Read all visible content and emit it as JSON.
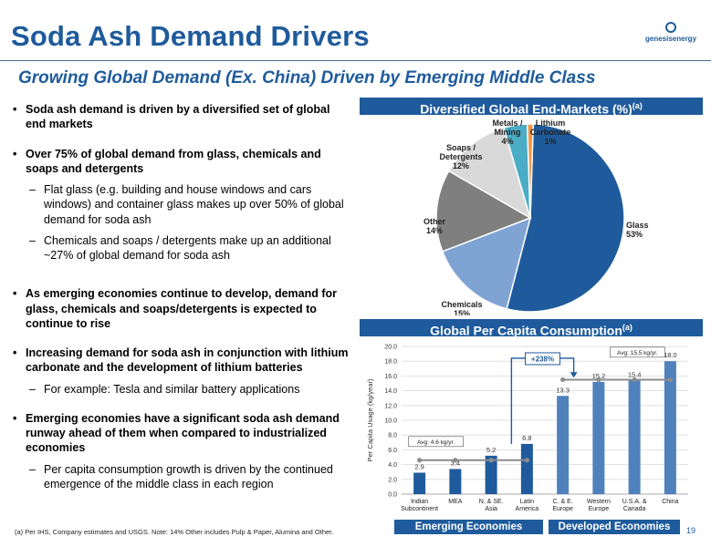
{
  "header": {
    "title": "Soda Ash Demand Drivers",
    "subtitle": "Growing Global Demand (Ex. China) Driven by Emerging Middle Class",
    "logo_text": "genesisenergy"
  },
  "bullets": [
    {
      "text": "Soda ash demand is driven by a diversified set of global end markets",
      "subs": []
    },
    {
      "text": "Over 75% of global demand from glass, chemicals and soaps and detergents",
      "subs": [
        "Flat glass (e.g. building and house windows and cars windows) and container glass makes up over 50% of global demand for soda ash",
        "Chemicals and soaps / detergents make up an additional ~27% of global demand for soda ash"
      ]
    },
    {
      "text": "As emerging economies continue to develop, demand for glass, chemicals and soaps/detergents is expected to continue to rise",
      "subs": []
    },
    {
      "text": "Increasing demand for soda ash in conjunction with lithium carbonate and the development of lithium batteries",
      "subs": [
        "For example: Tesla and similar battery applications"
      ]
    },
    {
      "text": "Emerging economies have a significant soda ash demand runway ahead of them when compared to industrialized economies",
      "subs": [
        "Per capita consumption growth is driven by the continued emergence of the middle class in each region"
      ]
    }
  ],
  "pie_panel": {
    "title": "Diversified Global End-Markets (%)",
    "sup": "(a)"
  },
  "bar_panel": {
    "title": "Global Per Capita Consumption",
    "sup": "(a)"
  },
  "chart_data": [
    {
      "type": "pie",
      "slices": [
        {
          "label": [
            "Glass",
            "53%"
          ],
          "value": 53,
          "color": "#1F5B9C"
        },
        {
          "label": [
            "Chemicals",
            "15%"
          ],
          "value": 15,
          "color": "#7FA3D3"
        },
        {
          "label": [
            "Other",
            "14%"
          ],
          "value": 14,
          "color": "#7F7F7F"
        },
        {
          "label": [
            "Soaps /",
            "Detergents",
            "12%"
          ],
          "value": 12,
          "color": "#D9D9D9"
        },
        {
          "label": [
            "Metals /",
            "Mining",
            "4%"
          ],
          "value": 4,
          "color": "#4BACC6"
        },
        {
          "label": [
            "Lithium",
            "Carbonate",
            "1%"
          ],
          "value": 1,
          "color": "#F79646"
        }
      ]
    },
    {
      "type": "bar",
      "categories": [
        [
          "Indian",
          "Subcontinent"
        ],
        [
          "MEA"
        ],
        [
          "N. & SE.",
          "Asia"
        ],
        [
          "Latin",
          "America"
        ],
        [
          "C. & E.",
          "Europe"
        ],
        [
          "Western",
          "Europe"
        ],
        [
          "U.S.A. &",
          "Canada"
        ],
        [
          "China"
        ]
      ],
      "values": [
        2.9,
        3.4,
        5.2,
        6.8,
        13.3,
        15.2,
        15.4,
        18.0
      ],
      "value_labels": [
        "2.9",
        "3.4",
        "5.2",
        "6.8",
        "13.3",
        "15.2",
        "15.4",
        "18.0"
      ],
      "colors": [
        "#1F5B9C",
        "#1F5B9C",
        "#1F5B9C",
        "#1F5B9C",
        "#4F81BD",
        "#4F81BD",
        "#4F81BD",
        "#4F81BD"
      ],
      "ylabel": "Per Capita Usage (kg/year)",
      "ylim": [
        0,
        20
      ],
      "yticks": [
        "0.0",
        "2.0",
        "4.0",
        "6.0",
        "8.0",
        "10.0",
        "12.0",
        "14.0",
        "16.0",
        "18.0",
        "20.0"
      ],
      "avg_lines": [
        {
          "label": "Avg: 4.6 kg/yr.",
          "value": 4.6,
          "from": 0,
          "to": 3
        },
        {
          "label": "Avg: 15.5 kg/yr.",
          "value": 15.5,
          "from": 4,
          "to": 7
        }
      ],
      "growth_label": "+238%",
      "groups": [
        "Emerging Economies",
        "Developed Economies"
      ]
    }
  ],
  "footnote": "(a)    Per IHS, Company estimates and USGS.  Note: 14% Other includes Pulp & Paper, Alumina and Other.",
  "page_number": "19"
}
